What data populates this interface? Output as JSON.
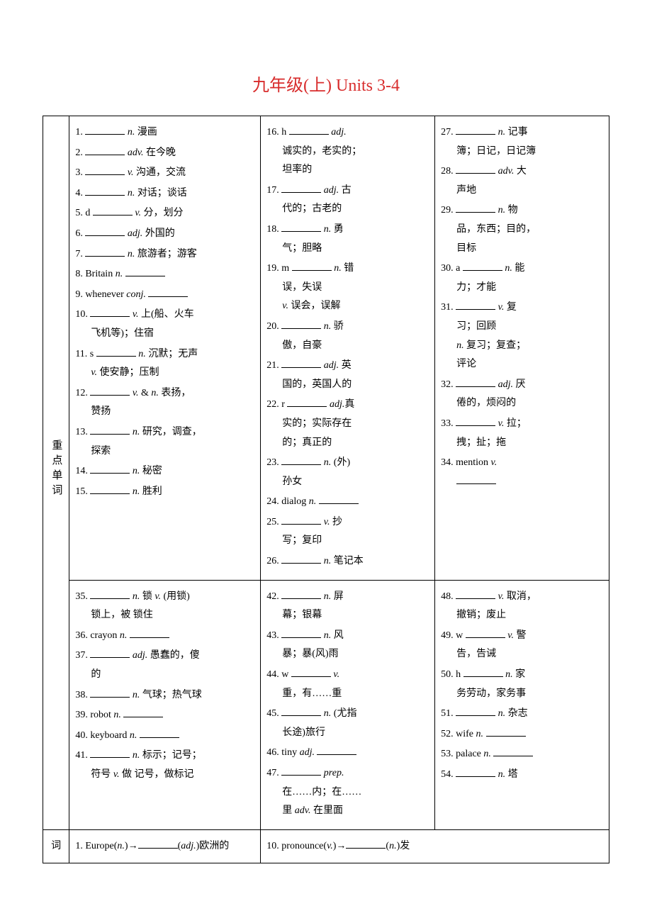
{
  "title": "九年级(上) Units 3-4",
  "section_labels": {
    "vocab": "重点单词",
    "trans": "词"
  },
  "row1": {
    "colA": [
      {
        "n": "1.",
        "b": 1,
        "after": " <i>n.</i> 漫画"
      },
      {
        "n": "2.",
        "b": 1,
        "after": " <i>adv.</i> 在今晚"
      },
      {
        "n": "3.",
        "b": 1,
        "after": " <i>v.</i> 沟通，交流"
      },
      {
        "n": "4.",
        "b": 1,
        "after": " <i>n.</i> 对话；谈话"
      },
      {
        "n": "5. d",
        "b": 1,
        "after": " <i>v.</i> 分，划分"
      },
      {
        "n": "6.",
        "b": 1,
        "after": " <i>adj.</i> 外国的"
      },
      {
        "n": "7.",
        "b": 1,
        "after": " <i>n.</i> 旅游者；游客"
      },
      {
        "n": "8. Britain <i>n.</i>",
        "b": 1,
        "after": ""
      },
      {
        "n": "9. whenever <i>conj.</i>",
        "b": 1,
        "after": ""
      },
      {
        "n": "10.",
        "b": 1,
        "after": " <i>v.</i> 上(船、火车",
        "sub": "飞机等)；住宿"
      },
      {
        "n": "11. s",
        "b": 1,
        "after": " <i>n.</i> 沉默；无声",
        "sub": "<i>v.</i> 使安静；压制"
      },
      {
        "n": "12.",
        "b": 1,
        "after": " <i>v.</i> & <i>n.</i> 表扬，",
        "sub": "赞扬"
      },
      {
        "n": "13.",
        "b": 1,
        "after": " <i>n.</i> 研究，调查，",
        "sub": "探索"
      },
      {
        "n": "14.",
        "b": 1,
        "after": " <i>n.</i> 秘密"
      },
      {
        "n": "15.",
        "b": 1,
        "after": " <i>n.</i> 胜利"
      }
    ],
    "colB": [
      {
        "n": "16. h",
        "b": 1,
        "after": " <i>adj.</i>",
        "sub": "诚实的，老实的；<br>坦率的"
      },
      {
        "n": "17.",
        "b": 1,
        "after": " <i>adj.</i> 古",
        "sub": "代的；古老的"
      },
      {
        "n": "18.",
        "b": 1,
        "after": " <i>n.</i> 勇",
        "sub": "气；胆略"
      },
      {
        "n": "19. m",
        "b": 1,
        "after": " <i>n.</i> 错",
        "sub": "误，失误<br><i>v.</i> 误会，误解"
      },
      {
        "n": "20.",
        "b": 1,
        "after": " <i>n.</i> 骄",
        "sub": "傲，自豪"
      },
      {
        "n": "21.",
        "b": 1,
        "after": " <i>adj.</i> 英",
        "sub": "国的，英国人的"
      },
      {
        "n": "22. r",
        "b": 1,
        "after": " <i>adj.</i>真",
        "sub": "实的；实际存在<br>的；真正的"
      },
      {
        "n": "23.",
        "b": 1,
        "after": " <i>n.</i> (外)",
        "sub": "孙女"
      },
      {
        "n": "24. dialog <i>n.</i>",
        "b": 1,
        "after": ""
      },
      {
        "n": "25.",
        "b": 1,
        "after": " <i>v.</i> 抄",
        "sub": "写；复印"
      },
      {
        "n": "26.",
        "b": 1,
        "after": " <i>n.</i> 笔记本"
      }
    ],
    "colC": [
      {
        "n": "27.",
        "b": 1,
        "after": " <i>n.</i> 记事",
        "sub": "簿；日记，日记簿"
      },
      {
        "n": "28.",
        "b": 1,
        "after": " <i>adv.</i> 大",
        "sub": "声地"
      },
      {
        "n": "29.",
        "b": 1,
        "after": " <i>n.</i> 物",
        "sub": "品，东西；目的，<br>目标"
      },
      {
        "n": "30. a",
        "b": 1,
        "after": " <i>n.</i> 能",
        "sub": "力；才能"
      },
      {
        "n": "31.",
        "b": 1,
        "after": " <i>v.</i> 复",
        "sub": "习；回顾<br><i>n.</i> 复习；复查；<br>评论"
      },
      {
        "n": "32.",
        "b": 1,
        "after": " <i>adj.</i> 厌",
        "sub": "倦的，烦闷的"
      },
      {
        "n": "33.",
        "b": 1,
        "after": " <i>v.</i> 拉；",
        "sub": "拽；扯；拖"
      },
      {
        "n": "34. mention <i>v.</i>",
        "b": 0,
        "after": "",
        "sub": "<span class='blank'></span>"
      }
    ]
  },
  "row2": {
    "colA": [
      {
        "n": "35.",
        "b": 1,
        "after": " <i>n.</i> 锁 <i>v.</i> (用锁)",
        "sub": "锁上，被 锁住"
      },
      {
        "n": "36. crayon <i>n.</i>",
        "b": 1,
        "after": ""
      },
      {
        "n": "37.",
        "b": 1,
        "after": " <i>adj.</i> 愚蠢的，傻",
        "sub": "的"
      },
      {
        "n": "38.",
        "b": 1,
        "after": " <i>n.</i> 气球；热气球"
      },
      {
        "n": "39. robot <i>n.</i>",
        "b": 1,
        "after": ""
      },
      {
        "n": "40. keyboard <i>n.</i>",
        "b": 1,
        "after": ""
      },
      {
        "n": "41.",
        "b": 1,
        "after": " <i>n.</i> 标示；记号；",
        "sub": "符号 <i>v.</i> 做 记号，做标记"
      }
    ],
    "colB": [
      {
        "n": "42.",
        "b": 1,
        "after": " <i>n.</i> 屏",
        "sub": "幕；银幕"
      },
      {
        "n": "43.",
        "b": 1,
        "after": " <i>n.</i> 风",
        "sub": "暴；暴(风)雨"
      },
      {
        "n": "44. w",
        "b": 1,
        "after": " <i>v.</i>",
        "sub": "重，有……重"
      },
      {
        "n": "45.",
        "b": 1,
        "after": " <i>n.</i> (尤指",
        "sub": "长途)旅行"
      },
      {
        "n": "46. tiny <i>adj.</i>",
        "b": 1,
        "after": ""
      },
      {
        "n": "47.",
        "b": 1,
        "after": " <i>prep.</i>",
        "sub": "在……内；在……<br>里 <i>adv.</i> 在里面"
      }
    ],
    "colC": [
      {
        "n": "48.",
        "b": 1,
        "after": " <i>v.</i> 取消，",
        "sub": "撤销；废止"
      },
      {
        "n": "49. w",
        "b": 1,
        "after": " <i>v.</i> 警",
        "sub": "告，告诫"
      },
      {
        "n": "50. h",
        "b": 1,
        "after": " <i>n.</i> 家",
        "sub": "务劳动，家务事"
      },
      {
        "n": "51.",
        "b": 1,
        "after": " <i>n.</i> 杂志"
      },
      {
        "n": "52. wife <i>n.</i>",
        "b": 1,
        "after": ""
      },
      {
        "n": "53. palace <i>n.</i>",
        "b": 1,
        "after": ""
      },
      {
        "n": "54.",
        "b": 1,
        "after": " <i>n.</i> 塔"
      }
    ]
  },
  "row3": {
    "left": "1. Europe(<i>n.</i>)→________(<i>adj.</i>)欧洲的",
    "right": "10. pronounce(<i>v.</i>)→________(<i>n.</i>)发"
  }
}
